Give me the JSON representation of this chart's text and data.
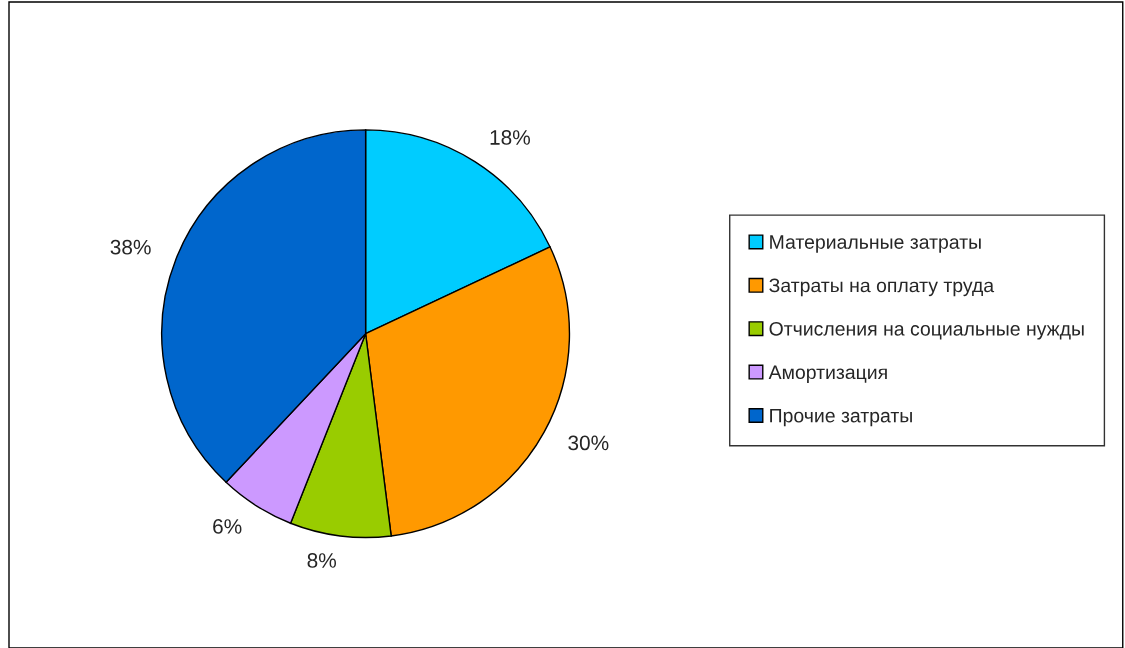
{
  "chart_data": {
    "type": "pie",
    "categories": [
      "Материальные затраты",
      "Затраты на оплату труда",
      "Отчисления на социальные нужды",
      "Амортизация",
      "Прочие затраты"
    ],
    "values": [
      18,
      30,
      8,
      6,
      38
    ],
    "value_labels": [
      "18%",
      "30%",
      "8%",
      "6%",
      "38%"
    ],
    "colors": [
      "#00ccff",
      "#ff9900",
      "#99cc00",
      "#cc99ff",
      "#0066cc"
    ],
    "legend": "right"
  }
}
